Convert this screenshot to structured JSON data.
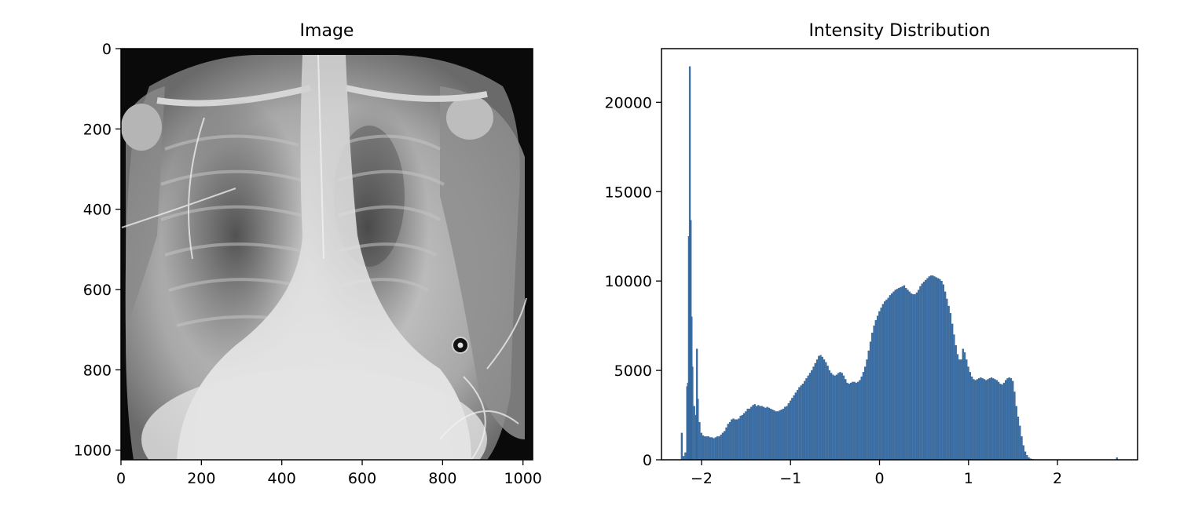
{
  "chart_data": [
    {
      "type": "image",
      "title": "Image",
      "xlabel": "",
      "ylabel": "",
      "xlim": [
        0,
        1024
      ],
      "ylim": [
        1024,
        0
      ],
      "x_ticks": [
        "0",
        "200",
        "400",
        "600",
        "800",
        "1000"
      ],
      "y_ticks": [
        "0",
        "200",
        "400",
        "600",
        "800",
        "1000"
      ],
      "colormap": "gray"
    },
    {
      "type": "bar",
      "title": "Intensity Distribution",
      "xlabel": "",
      "ylabel": "",
      "xlim": [
        -2.45,
        2.9
      ],
      "ylim": [
        0,
        23000
      ],
      "x_ticks": [
        "−2",
        "−1",
        "0",
        "1",
        "2"
      ],
      "y_ticks": [
        "0",
        "5000",
        "10000",
        "15000",
        "20000"
      ],
      "bar_color": "#3a6ea5",
      "bin_width": 0.02,
      "bins": [
        [
          -2.22,
          1500
        ],
        [
          -2.2,
          200
        ],
        [
          -2.18,
          400
        ],
        [
          -2.16,
          4100
        ],
        [
          -2.15,
          4300
        ],
        [
          -2.14,
          12500
        ],
        [
          -2.13,
          22000
        ],
        [
          -2.12,
          13400
        ],
        [
          -2.11,
          8000
        ],
        [
          -2.1,
          5200
        ],
        [
          -2.08,
          3000
        ],
        [
          -2.06,
          2500
        ],
        [
          -2.05,
          6200
        ],
        [
          -2.04,
          3400
        ],
        [
          -2.02,
          2100
        ],
        [
          -2.0,
          1500
        ],
        [
          -1.98,
          1350
        ],
        [
          -1.96,
          1300
        ],
        [
          -1.94,
          1300
        ],
        [
          -1.92,
          1300
        ],
        [
          -1.9,
          1250
        ],
        [
          -1.88,
          1250
        ],
        [
          -1.86,
          1200
        ],
        [
          -1.84,
          1250
        ],
        [
          -1.82,
          1300
        ],
        [
          -1.8,
          1300
        ],
        [
          -1.78,
          1400
        ],
        [
          -1.76,
          1500
        ],
        [
          -1.74,
          1600
        ],
        [
          -1.72,
          1800
        ],
        [
          -1.7,
          2000
        ],
        [
          -1.68,
          2100
        ],
        [
          -1.66,
          2250
        ],
        [
          -1.64,
          2300
        ],
        [
          -1.62,
          2250
        ],
        [
          -1.6,
          2250
        ],
        [
          -1.58,
          2300
        ],
        [
          -1.56,
          2450
        ],
        [
          -1.54,
          2500
        ],
        [
          -1.52,
          2600
        ],
        [
          -1.5,
          2700
        ],
        [
          -1.48,
          2850
        ],
        [
          -1.46,
          2850
        ],
        [
          -1.44,
          2950
        ],
        [
          -1.42,
          3050
        ],
        [
          -1.4,
          3100
        ],
        [
          -1.38,
          3000
        ],
        [
          -1.36,
          3050
        ],
        [
          -1.34,
          3000
        ],
        [
          -1.32,
          3000
        ],
        [
          -1.3,
          2950
        ],
        [
          -1.28,
          2900
        ],
        [
          -1.26,
          2950
        ],
        [
          -1.24,
          2900
        ],
        [
          -1.22,
          2850
        ],
        [
          -1.2,
          2800
        ],
        [
          -1.18,
          2750
        ],
        [
          -1.16,
          2700
        ],
        [
          -1.14,
          2700
        ],
        [
          -1.12,
          2750
        ],
        [
          -1.1,
          2800
        ],
        [
          -1.08,
          2850
        ],
        [
          -1.06,
          2950
        ],
        [
          -1.04,
          3000
        ],
        [
          -1.02,
          3150
        ],
        [
          -1.0,
          3300
        ],
        [
          -0.98,
          3450
        ],
        [
          -0.96,
          3600
        ],
        [
          -0.94,
          3750
        ],
        [
          -0.92,
          3900
        ],
        [
          -0.9,
          4050
        ],
        [
          -0.88,
          4150
        ],
        [
          -0.86,
          4250
        ],
        [
          -0.84,
          4400
        ],
        [
          -0.82,
          4550
        ],
        [
          -0.8,
          4700
        ],
        [
          -0.78,
          4850
        ],
        [
          -0.76,
          5000
        ],
        [
          -0.74,
          5200
        ],
        [
          -0.72,
          5400
        ],
        [
          -0.7,
          5600
        ],
        [
          -0.68,
          5800
        ],
        [
          -0.66,
          5850
        ],
        [
          -0.64,
          5750
        ],
        [
          -0.62,
          5600
        ],
        [
          -0.6,
          5450
        ],
        [
          -0.58,
          5250
        ],
        [
          -0.56,
          5000
        ],
        [
          -0.54,
          4850
        ],
        [
          -0.52,
          4750
        ],
        [
          -0.5,
          4700
        ],
        [
          -0.48,
          4750
        ],
        [
          -0.46,
          4850
        ],
        [
          -0.44,
          4900
        ],
        [
          -0.42,
          4850
        ],
        [
          -0.4,
          4700
        ],
        [
          -0.38,
          4500
        ],
        [
          -0.36,
          4300
        ],
        [
          -0.34,
          4250
        ],
        [
          -0.32,
          4300
        ],
        [
          -0.3,
          4350
        ],
        [
          -0.28,
          4350
        ],
        [
          -0.26,
          4300
        ],
        [
          -0.24,
          4350
        ],
        [
          -0.22,
          4450
        ],
        [
          -0.2,
          4650
        ],
        [
          -0.18,
          4900
        ],
        [
          -0.16,
          5200
        ],
        [
          -0.14,
          5600
        ],
        [
          -0.12,
          6100
        ],
        [
          -0.1,
          6600
        ],
        [
          -0.08,
          7100
        ],
        [
          -0.06,
          7500
        ],
        [
          -0.04,
          7800
        ],
        [
          -0.02,
          8050
        ],
        [
          0.0,
          8300
        ],
        [
          0.02,
          8500
        ],
        [
          0.04,
          8700
        ],
        [
          0.06,
          8850
        ],
        [
          0.08,
          8950
        ],
        [
          0.1,
          9050
        ],
        [
          0.12,
          9200
        ],
        [
          0.14,
          9300
        ],
        [
          0.16,
          9400
        ],
        [
          0.18,
          9500
        ],
        [
          0.2,
          9550
        ],
        [
          0.22,
          9600
        ],
        [
          0.24,
          9650
        ],
        [
          0.26,
          9700
        ],
        [
          0.28,
          9750
        ],
        [
          0.3,
          9600
        ],
        [
          0.32,
          9500
        ],
        [
          0.34,
          9400
        ],
        [
          0.36,
          9300
        ],
        [
          0.38,
          9250
        ],
        [
          0.4,
          9250
        ],
        [
          0.42,
          9350
        ],
        [
          0.44,
          9500
        ],
        [
          0.46,
          9700
        ],
        [
          0.48,
          9850
        ],
        [
          0.5,
          9950
        ],
        [
          0.52,
          10050
        ],
        [
          0.54,
          10150
        ],
        [
          0.56,
          10250
        ],
        [
          0.58,
          10300
        ],
        [
          0.6,
          10300
        ],
        [
          0.62,
          10250
        ],
        [
          0.64,
          10200
        ],
        [
          0.66,
          10150
        ],
        [
          0.68,
          10100
        ],
        [
          0.7,
          10000
        ],
        [
          0.72,
          9800
        ],
        [
          0.74,
          9400
        ],
        [
          0.76,
          9000
        ],
        [
          0.78,
          8600
        ],
        [
          0.8,
          8200
        ],
        [
          0.82,
          7600
        ],
        [
          0.84,
          7000
        ],
        [
          0.86,
          6400
        ],
        [
          0.88,
          5900
        ],
        [
          0.9,
          5600
        ],
        [
          0.92,
          5600
        ],
        [
          0.94,
          6200
        ],
        [
          0.96,
          6000
        ],
        [
          0.98,
          5600
        ],
        [
          1.0,
          5200
        ],
        [
          1.02,
          4900
        ],
        [
          1.04,
          4650
        ],
        [
          1.06,
          4500
        ],
        [
          1.08,
          4450
        ],
        [
          1.1,
          4500
        ],
        [
          1.12,
          4550
        ],
        [
          1.14,
          4600
        ],
        [
          1.16,
          4550
        ],
        [
          1.18,
          4500
        ],
        [
          1.2,
          4450
        ],
        [
          1.22,
          4500
        ],
        [
          1.24,
          4550
        ],
        [
          1.26,
          4600
        ],
        [
          1.28,
          4550
        ],
        [
          1.3,
          4500
        ],
        [
          1.32,
          4450
        ],
        [
          1.34,
          4350
        ],
        [
          1.36,
          4250
        ],
        [
          1.38,
          4200
        ],
        [
          1.4,
          4300
        ],
        [
          1.42,
          4450
        ],
        [
          1.44,
          4550
        ],
        [
          1.46,
          4600
        ],
        [
          1.48,
          4550
        ],
        [
          1.5,
          4400
        ],
        [
          1.52,
          3800
        ],
        [
          1.54,
          3000
        ],
        [
          1.56,
          2400
        ],
        [
          1.58,
          1900
        ],
        [
          1.6,
          1300
        ],
        [
          1.62,
          800
        ],
        [
          1.64,
          450
        ],
        [
          1.66,
          250
        ],
        [
          1.68,
          120
        ],
        [
          1.7,
          60
        ],
        [
          1.72,
          30
        ],
        [
          1.74,
          15
        ],
        [
          1.76,
          8
        ],
        [
          1.8,
          5
        ],
        [
          2.0,
          3
        ],
        [
          2.3,
          3
        ],
        [
          2.6,
          5
        ],
        [
          2.67,
          120
        ],
        [
          2.75,
          4
        ]
      ]
    }
  ]
}
